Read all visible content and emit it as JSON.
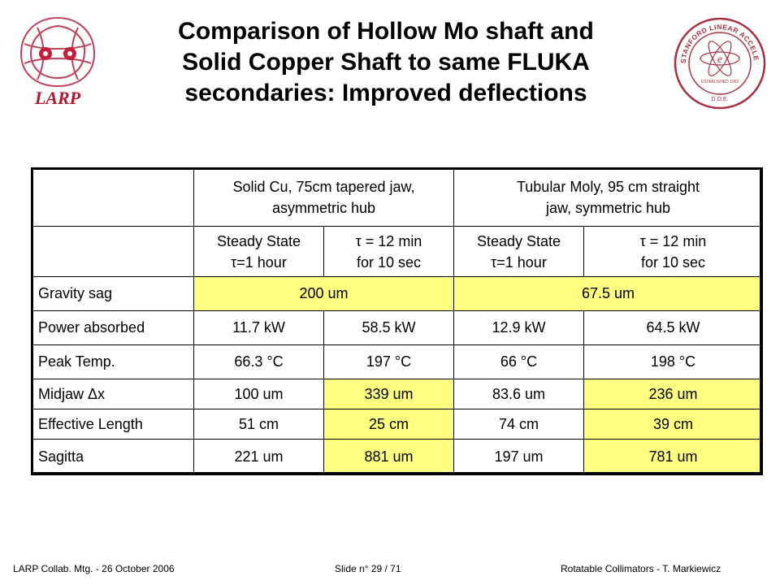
{
  "title": {
    "line1": "Comparison of Hollow Mo shaft and",
    "line2": "Solid Copper Shaft to same FLUKA",
    "line3": "secondaries: Improved deflections"
  },
  "logos": {
    "larp_text": "LARP",
    "slac_seal_text": "STANFORD LINEAR ACCELERATOR CENTER",
    "slac_established": "ESTABLISHED 1962",
    "slac_doe": "D.O.E."
  },
  "table": {
    "group_headers": {
      "cu": [
        "Solid Cu, 75cm tapered jaw,",
        "asymmetric hub"
      ],
      "mo": [
        "Tubular Moly, 95 cm straight",
        "jaw, symmetric hub"
      ]
    },
    "sub_headers": [
      [
        "Steady State",
        "τ=1 hour"
      ],
      [
        "τ = 12 min",
        "for 10 sec"
      ],
      [
        "Steady State",
        "τ=1 hour"
      ],
      [
        "τ = 12 min",
        "for 10 sec"
      ]
    ],
    "gravity": {
      "label": "Gravity sag",
      "cu": "200 um",
      "mo": "67.5 um"
    },
    "rows": [
      {
        "label": "Power absorbed",
        "values": [
          "11.7 kW",
          "58.5 kW",
          "12.9 kW",
          "64.5 kW"
        ]
      },
      {
        "label": "Peak Temp.",
        "values": [
          "66.3 °C",
          "197 °C",
          "66 °C",
          "198 °C"
        ]
      },
      {
        "label": "Midjaw Δx",
        "values": [
          "100 um",
          "339 um",
          "83.6 um",
          "236 um"
        ]
      },
      {
        "label": "Effective Length",
        "values": [
          "51 cm",
          "25 cm",
          "74 cm",
          "39 cm"
        ]
      },
      {
        "label": "Sagitta",
        "values": [
          "221 um",
          "881 um",
          "197 um",
          "781 um"
        ]
      }
    ],
    "highlight_color": "#ffff80"
  },
  "footer": {
    "left": "LARP Collab. Mtg.  -  26 October 2006",
    "center": "Slide n° 29 / 71",
    "right": "Rotatable Collimators -  T.  Markiewicz"
  }
}
